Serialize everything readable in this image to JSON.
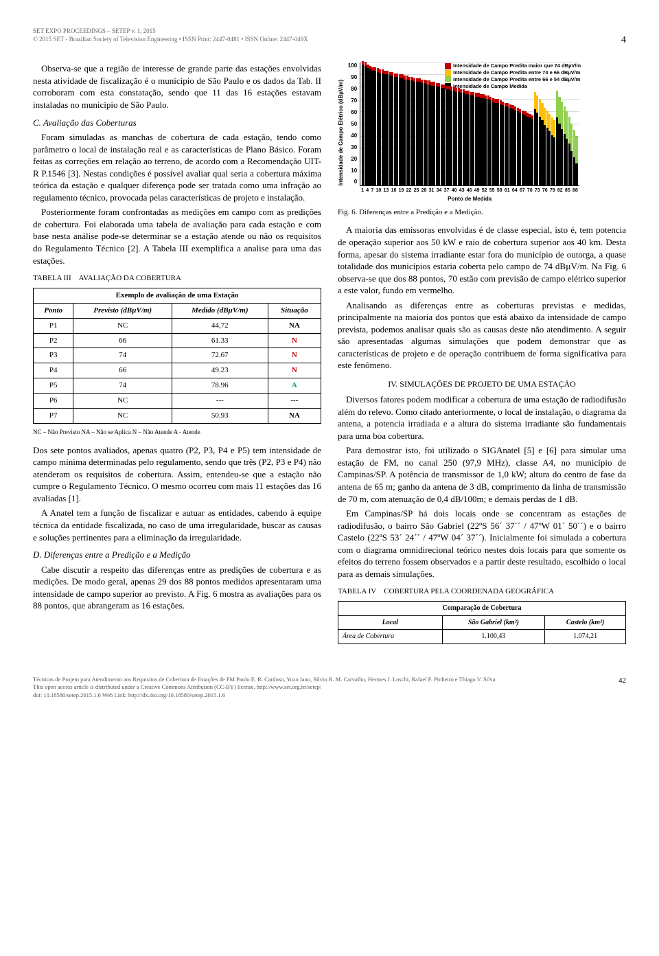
{
  "header": {
    "line1": "SET EXPO PROCEEDINGS – SETEP v. 1, 2015",
    "line2": "© 2015 SET - Brazilian Society of Television Engineering • ISSN Print: 2447-0481 • ISSN Online: 2447-049X",
    "page_number": "4"
  },
  "left": {
    "p1": "Observa-se que a região de interesse de grande parte das estações envolvidas nesta atividade de fiscalização é o município de São Paulo e os dados da Tab. II corroboram com esta constatação, sendo que 11 das 16 estações estavam instaladas no município de São Paulo.",
    "sectC": "C.  Avaliação das Coberturas",
    "p2": "Foram simuladas as manchas de cobertura de cada estação, tendo como parâmetro o local de instalação real e as características de Plano Básico. Foram feitas as correções em relação ao terreno, de acordo com a Recomendação UIT-R P.1546 [3]. Nestas condições é possível avaliar qual seria a cobertura máxima teórica da estação e qualquer diferença pode ser tratada como uma infração ao regulamento técnico, provocada pelas características de projeto e instalação.",
    "p3": "Posteriormente foram confrontadas as medições em campo com as predições de cobertura. Foi elaborada uma tabela de avaliação para cada estação e com base nesta análise pode-se determinar se a estação atende ou não os requisitos do Regulamento Técnico [2]. A Tabela III exemplifica a analise para uma das estações.",
    "table3": {
      "label": "TABELA III",
      "title": "AVALIAÇÃO DA COBERTURA",
      "caption": "Exemplo de avaliação de uma Estação",
      "columns": [
        "Ponto",
        "Previsto (dBµV/m)",
        "Medido (dBµV/m)",
        "Situação"
      ],
      "rows": [
        [
          "P1",
          "NC",
          "44,72",
          "NA"
        ],
        [
          "P2",
          "66",
          "61.33",
          "N"
        ],
        [
          "P3",
          "74",
          "72.67",
          "N"
        ],
        [
          "P4",
          "66",
          "49.23",
          "N"
        ],
        [
          "P5",
          "74",
          "78.96",
          "A"
        ],
        [
          "P6",
          "NC",
          "---",
          "---"
        ],
        [
          "P7",
          "NC",
          "50.93",
          "NA"
        ]
      ],
      "situacao_colors": {
        "N": "#c00000",
        "A": "#00a651",
        "NA": "#000",
        "---": "#000"
      },
      "note": "NC – Não Previsto    NA – Não se Aplica    N – Não Atende    A - Atende"
    },
    "p4": "Dos sete pontos avaliados, apenas quatro (P2, P3, P4 e P5) tem intensidade de campo mínima determinadas pelo regulamento, sendo que três (P2, P3 e P4) não atenderam os requisitos de cobertura. Assim, entendeu-se que a estação não cumpre o Regulamento Técnico. O mesmo ocorreu com mais 11 estações das 16 avaliadas [1].",
    "p5": "A Anatel tem a função de fiscalizar e autuar as entidades, cabendo à equipe técnica da entidade fiscalizada, no caso de uma irregularidade, buscar as causas e soluções pertinentes para a eliminação da irregularidade.",
    "sectD": "D.  Diferenças entre a Predição e a Medição",
    "p6": "Cabe discutir a respeito das diferenças entre as predições de cobertura e as medições. De modo geral, apenas 29 dos 88 pontos medidos apresentaram uma intensidade de campo superior ao previsto. A Fig. 6 mostra as avaliações para os 88 pontos, que abrangeram as 16 estações."
  },
  "right": {
    "chart": {
      "type": "stacked-bar",
      "ylabel": "Intensidade de Campo Elétrico (dBµV/m)",
      "xlabel": "Ponto de Medida",
      "ylim": [
        0,
        100
      ],
      "ytick_step": 10,
      "legend": [
        {
          "label": "Intensidade de Campo Predita maior que 74 dBµV/m",
          "color": "#c00000"
        },
        {
          "label": "Intensidade de Campo Predita entre 74 e 66 dBµV/m",
          "color": "#ffc000"
        },
        {
          "label": "Intensidade de Campo Predita entre 66 e 54 dBµV/m",
          "color": "#92d050"
        },
        {
          "label": "Intensidade de Campo Medida",
          "color": "#000000"
        }
      ],
      "x_ticks": [
        1,
        4,
        7,
        10,
        13,
        16,
        19,
        22,
        25,
        28,
        31,
        34,
        37,
        40,
        43,
        46,
        49,
        52,
        55,
        58,
        61,
        64,
        67,
        70,
        73,
        76,
        79,
        82,
        85,
        88
      ],
      "bars": [
        {
          "black": 98,
          "over": "r"
        },
        {
          "black": 97,
          "over": "r"
        },
        {
          "black": 95,
          "over": "r"
        },
        {
          "black": 94,
          "over": "r"
        },
        {
          "black": 93,
          "over": "r"
        },
        {
          "black": 93,
          "over": "r"
        },
        {
          "black": 92,
          "over": "r"
        },
        {
          "black": 91,
          "over": "r"
        },
        {
          "black": 91,
          "over": "r"
        },
        {
          "black": 90,
          "over": "r"
        },
        {
          "black": 90,
          "over": "r"
        },
        {
          "black": 89,
          "over": "r"
        },
        {
          "black": 89,
          "over": "r"
        },
        {
          "black": 88,
          "over": "r"
        },
        {
          "black": 88,
          "over": "r"
        },
        {
          "black": 87,
          "over": "r"
        },
        {
          "black": 87,
          "over": "r"
        },
        {
          "black": 86,
          "over": "r"
        },
        {
          "black": 86,
          "over": "r"
        },
        {
          "black": 85,
          "over": "r"
        },
        {
          "black": 85,
          "over": "r"
        },
        {
          "black": 84,
          "over": "r"
        },
        {
          "black": 84,
          "over": "r"
        },
        {
          "black": 84,
          "over": "r"
        },
        {
          "black": 83,
          "over": "r"
        },
        {
          "black": 83,
          "over": "r"
        },
        {
          "black": 82,
          "over": "r"
        },
        {
          "black": 82,
          "over": "r"
        },
        {
          "black": 81,
          "over": "r"
        },
        {
          "black": 81,
          "over": "r"
        },
        {
          "black": 80,
          "over": "r"
        },
        {
          "black": 80,
          "over": "r"
        },
        {
          "black": 79,
          "over": "r"
        },
        {
          "black": 79,
          "over": "r"
        },
        {
          "black": 78,
          "over": "r"
        },
        {
          "black": 78,
          "over": "r"
        },
        {
          "black": 77,
          "over": "r"
        },
        {
          "black": 77,
          "over": "r"
        },
        {
          "black": 76,
          "over": "r"
        },
        {
          "black": 76,
          "over": "r"
        },
        {
          "black": 75,
          "over": "r"
        },
        {
          "black": 75,
          "over": "r"
        },
        {
          "black": 74,
          "over": "r"
        },
        {
          "black": 74,
          "over": "r"
        },
        {
          "black": 73,
          "over": "r"
        },
        {
          "black": 73,
          "over": "r"
        },
        {
          "black": 72,
          "over": "r"
        },
        {
          "black": 72,
          "over": "r"
        },
        {
          "black": 71,
          "over": "r"
        },
        {
          "black": 71,
          "over": "r"
        },
        {
          "black": 70,
          "over": "r"
        },
        {
          "black": 70,
          "over": "r"
        },
        {
          "black": 69,
          "over": "r"
        },
        {
          "black": 68,
          "over": "r"
        },
        {
          "black": 67,
          "over": "r"
        },
        {
          "black": 67,
          "over": "r"
        },
        {
          "black": 66,
          "over": "r"
        },
        {
          "black": 65,
          "over": "r"
        },
        {
          "black": 64,
          "over": "r"
        },
        {
          "black": 64,
          "over": "r"
        },
        {
          "black": 63,
          "over": "r"
        },
        {
          "black": 62,
          "over": "r"
        },
        {
          "black": 61,
          "over": "r"
        },
        {
          "black": 60,
          "over": "r"
        },
        {
          "black": 59,
          "over": "r"
        },
        {
          "black": 58,
          "over": "r"
        },
        {
          "black": 57,
          "over": "r"
        },
        {
          "black": 56,
          "over": "r"
        },
        {
          "black": 55,
          "over": "r"
        },
        {
          "black": 54,
          "over": "r"
        },
        {
          "black": 62,
          "over": "y"
        },
        {
          "black": 59,
          "over": "y"
        },
        {
          "black": 56,
          "over": "y"
        },
        {
          "black": 53,
          "over": "y"
        },
        {
          "black": 49,
          "over": "y"
        },
        {
          "black": 47,
          "over": "y"
        },
        {
          "black": 44,
          "over": "y"
        },
        {
          "black": 41,
          "over": "y"
        },
        {
          "black": 39,
          "over": "y"
        },
        {
          "black": 55,
          "over": "g"
        },
        {
          "black": 50,
          "over": "g"
        },
        {
          "black": 46,
          "over": "g"
        },
        {
          "black": 42,
          "over": "g"
        },
        {
          "black": 38,
          "over": "g"
        },
        {
          "black": 34,
          "over": "g"
        },
        {
          "black": 28,
          "over": "g"
        },
        {
          "black": 23,
          "over": "g"
        },
        {
          "black": 18,
          "over": "g"
        }
      ],
      "over_heights": {
        "r": 3,
        "y": 14,
        "g": 22
      },
      "colors": {
        "r": "#c00000",
        "y": "#ffc000",
        "g": "#92d050",
        "black": "#000000"
      },
      "grid_color": "#d9d9d9"
    },
    "fig6": "Fig. 6.   Diferenças entre a Predição e a Medição.",
    "p1": "A maioria das emissoras envolvidas é de classe especial, isto é, tem potencia de operação superior aos 50 kW e raio de cobertura superior aos 40 km. Desta forma, apesar do sistema irradiante estar fora do município de outorga, a quase totalidade dos municípios estaria coberta pelo campo de 74 dBµV/m. Na Fig. 6 observa-se que dos 88 pontos, 70 estão com previsão de campo elétrico superior a este valor, fundo em vermelho.",
    "p2": "Analisando as diferenças entre as coberturas previstas e medidas, principalmente na maioria dos pontos que está abaixo da intensidade de campo prevista, podemos analisar quais são as causas deste não atendimento. A seguir são apresentadas algumas simulações que podem demonstrar que as características de projeto e de operação contribuem de forma significativa para este fenômeno.",
    "sect4": "IV.   SIMULAÇÕES DE PROJETO DE UMA ESTAÇÃO",
    "p3": "Diversos fatores podem modificar a cobertura de uma estação de radiodifusão além do relevo. Como citado anteriormente, o local de instalação, o diagrama da antena, a potencia irradiada e a altura do sistema irradiante são fundamentais para uma boa cobertura.",
    "p4": "Para demostrar isto, foi utilizado o SIGAnatel [5] e [6] para simular uma estação de FM, no canal 250 (97,9 MHz), classe A4, no município de Campinas/SP. A potência de transmissor de 1,0 kW; altura do centro de fase da antena de 65 m; ganho da antena de 3 dB, comprimento da linha de transmissão de 70 m, com atenuação de 0,4 dB/100m; e demais perdas de 1 dB.",
    "p5": "Em Campinas/SP há dois locais onde se concentram as estações de radiodifusão, o bairro São Gabriel (22ºS 56´ 37´´ / 47ºW 01´ 50´´) e o bairro Castelo (22ºS 53´ 24´´ / 47ºW 04´ 37´´). Inicialmente foi simulada a cobertura com o diagrama omnidirecional teórico nestes dois locais para que somente os efeitos do terreno fossem observados e a partir deste resultado, escolhido o local para as demais simulações.",
    "table4": {
      "label": "TABELA IV",
      "title": "COBERTURA PELA COORDENADA GEOGRÁFICA",
      "caption": "Comparação de Cobertura",
      "columns": [
        "Local",
        "São Gabriel (km²)",
        "Castelo (km²)"
      ],
      "rows": [
        [
          "Área de Cobertura",
          "1.100,43",
          "1.074,21"
        ]
      ]
    }
  },
  "footer": {
    "line1": "Técnicas de Projeto para Atendimento aos Requisitos de Cobertura de Estações de FM   Paulo E. R. Cardoso, Yuzo Iano, Silvio R. M. Carvalho, Hermes J. Loschi, Rafael F. Pinheiro e Thiago V. Silva",
    "line2": "This open access article is distributed under a Creative Commons Attribution (CC-BY) license. http://www.set.org.br/setep/",
    "line3": "doi: 10.18580/setep.2015.1.6                    Web Link: http://dx.doi.org/10.18580/setep.2015.1.6",
    "page": "42"
  }
}
